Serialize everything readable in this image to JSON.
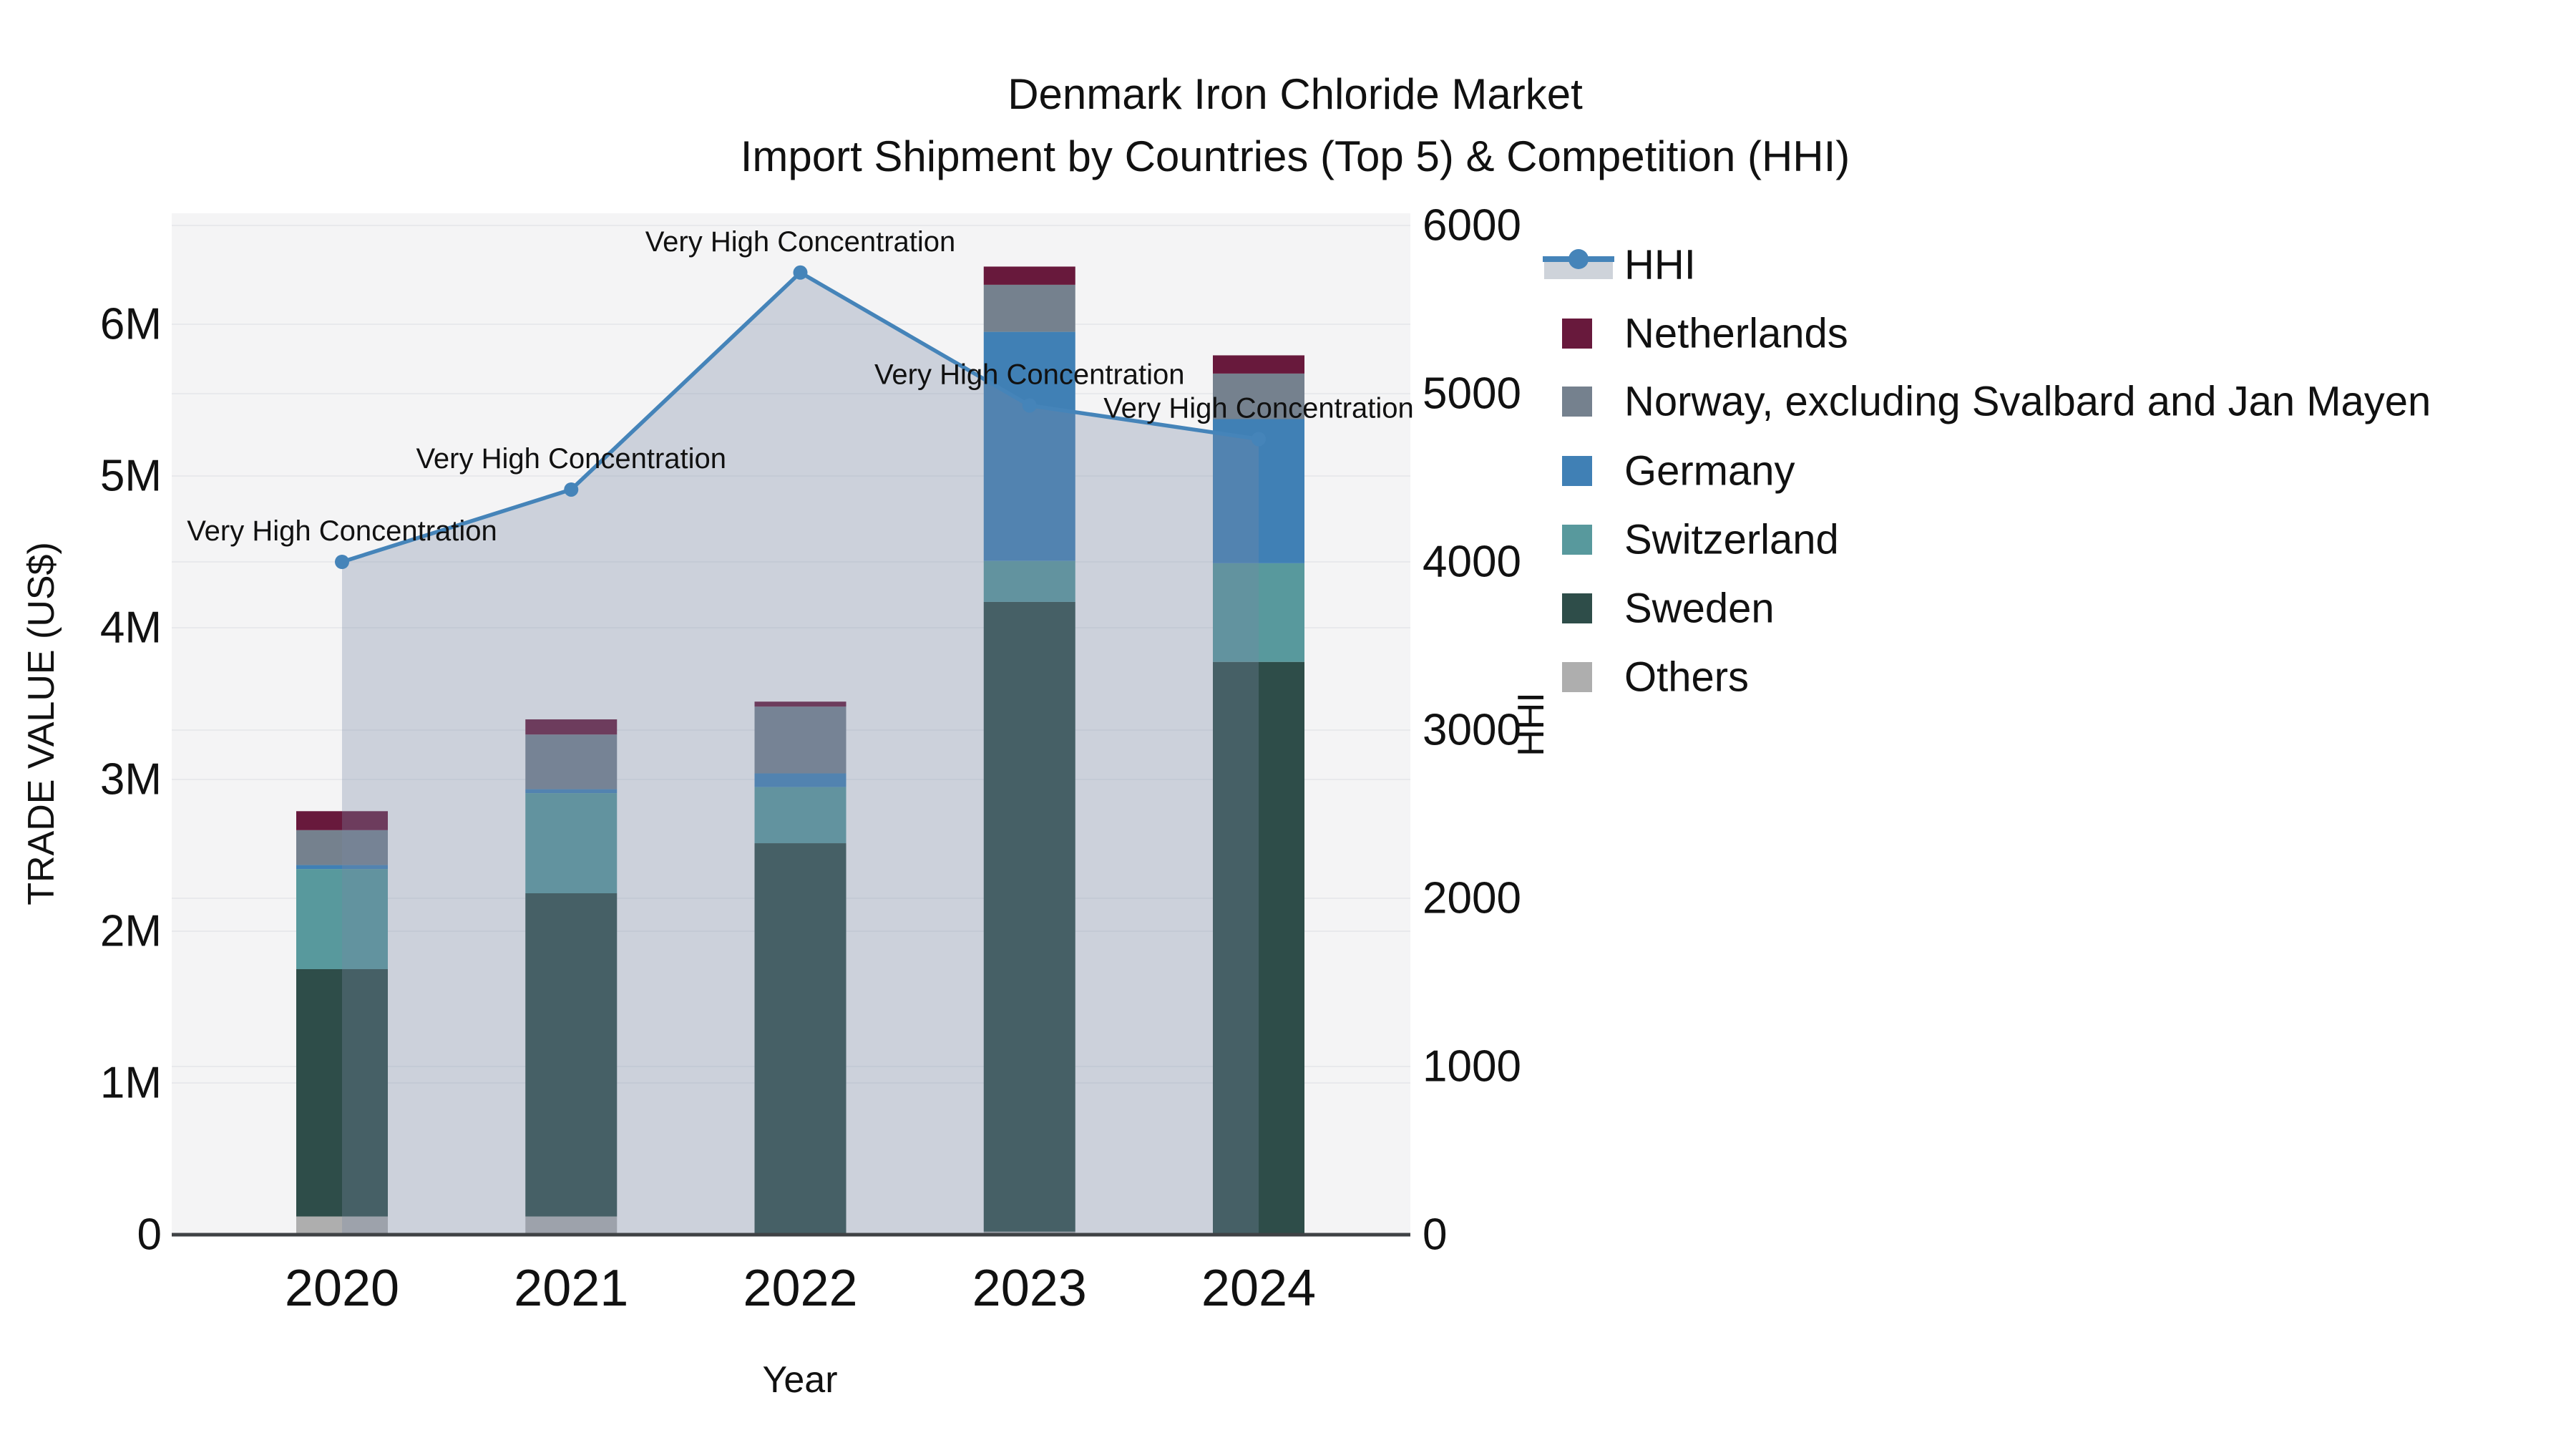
{
  "title": {
    "line1": "Denmark Iron Chloride Market",
    "line2": "Import Shipment by Countries (Top 5) & Competition (HHI)"
  },
  "axis_titles": {
    "left": "TRADE VALUE (US$)",
    "bottom": "Year",
    "right": "HHI"
  },
  "colors": {
    "figure_background": "#ffffff",
    "plot_background": "#f4f4f5",
    "gridline": "#e8e9ec",
    "axis_line": "#3f4245",
    "hhi_line": "#4584b9",
    "hhi_area_fill": "rgba(120,136,165,0.32)",
    "hhi_legend_band": "#ced3da",
    "text": "#111111"
  },
  "chart_data": {
    "type": "bar+line",
    "title": "Denmark Iron Chloride Market — Import Shipment by Countries (Top 5) & Competition (HHI)",
    "categories": [
      "2020",
      "2021",
      "2022",
      "2023",
      "2024"
    ],
    "bar_value_unit": "US$ trade value",
    "stack_order_note": "series listed bottom-to-top of stack",
    "series": [
      {
        "name": "Others",
        "color": "#aeaeae",
        "values": [
          120000,
          120000,
          10000,
          20000,
          5000
        ]
      },
      {
        "name": "Sweden",
        "color": "#2e4d49",
        "values": [
          1630000,
          2130000,
          2570000,
          4150000,
          3770000
        ]
      },
      {
        "name": "Switzerland",
        "color": "#58999d",
        "values": [
          660000,
          660000,
          370000,
          270000,
          650000
        ]
      },
      {
        "name": "Germany",
        "color": "#4080b5",
        "values": [
          26000,
          26000,
          90000,
          1510000,
          950000
        ]
      },
      {
        "name": "Norway, excluding Svalbard and Jan Mayen",
        "color": "#75818e",
        "values": [
          230000,
          360000,
          440000,
          310000,
          300000
        ]
      },
      {
        "name": "Netherlands",
        "color": "#68193c",
        "values": [
          125000,
          100000,
          33000,
          120000,
          120000
        ]
      }
    ],
    "line_series": {
      "name": "HHI",
      "values": [
        4000,
        4430,
        5720,
        4930,
        4730
      ],
      "axis": "right"
    },
    "annotations": [
      {
        "category": "2020",
        "text": "Very High Concentration"
      },
      {
        "category": "2021",
        "text": "Very High Concentration"
      },
      {
        "category": "2022",
        "text": "Very High Concentration"
      },
      {
        "category": "2023",
        "text": "Very High Concentration"
      },
      {
        "category": "2024",
        "text": "Very High Concentration"
      }
    ],
    "xlabel": "Year",
    "ylabel_left": "TRADE VALUE (US$)",
    "ylabel_right": "HHI",
    "y_left_ticks": [
      {
        "value": 0,
        "label": "0"
      },
      {
        "value": 1000000,
        "label": "1M"
      },
      {
        "value": 2000000,
        "label": "2M"
      },
      {
        "value": 3000000,
        "label": "3M"
      },
      {
        "value": 4000000,
        "label": "4M"
      },
      {
        "value": 5000000,
        "label": "5M"
      },
      {
        "value": 6000000,
        "label": "6M"
      }
    ],
    "y_right_ticks": [
      {
        "value": 0,
        "label": "0"
      },
      {
        "value": 1000,
        "label": "1000"
      },
      {
        "value": 2000,
        "label": "2000"
      },
      {
        "value": 3000,
        "label": "3000"
      },
      {
        "value": 4000,
        "label": "4000"
      },
      {
        "value": 5000,
        "label": "5000"
      },
      {
        "value": 6000,
        "label": "6000"
      }
    ],
    "ylim_left": [
      0,
      6730000
    ],
    "ylim_right": [
      0,
      6000
    ],
    "grid": true,
    "legend_position": "right"
  },
  "legend": {
    "items": [
      {
        "label": "HHI",
        "type": "line",
        "color": "#4584b9"
      },
      {
        "label": "Netherlands",
        "type": "swatch",
        "color": "#68193c"
      },
      {
        "label": "Norway, excluding Svalbard and Jan Mayen",
        "type": "swatch",
        "color": "#75818e"
      },
      {
        "label": "Germany",
        "type": "swatch",
        "color": "#4080b5"
      },
      {
        "label": "Switzerland",
        "type": "swatch",
        "color": "#58999d"
      },
      {
        "label": "Sweden",
        "type": "swatch",
        "color": "#2e4d49"
      },
      {
        "label": "Others",
        "type": "swatch",
        "color": "#aeaeae"
      }
    ]
  }
}
